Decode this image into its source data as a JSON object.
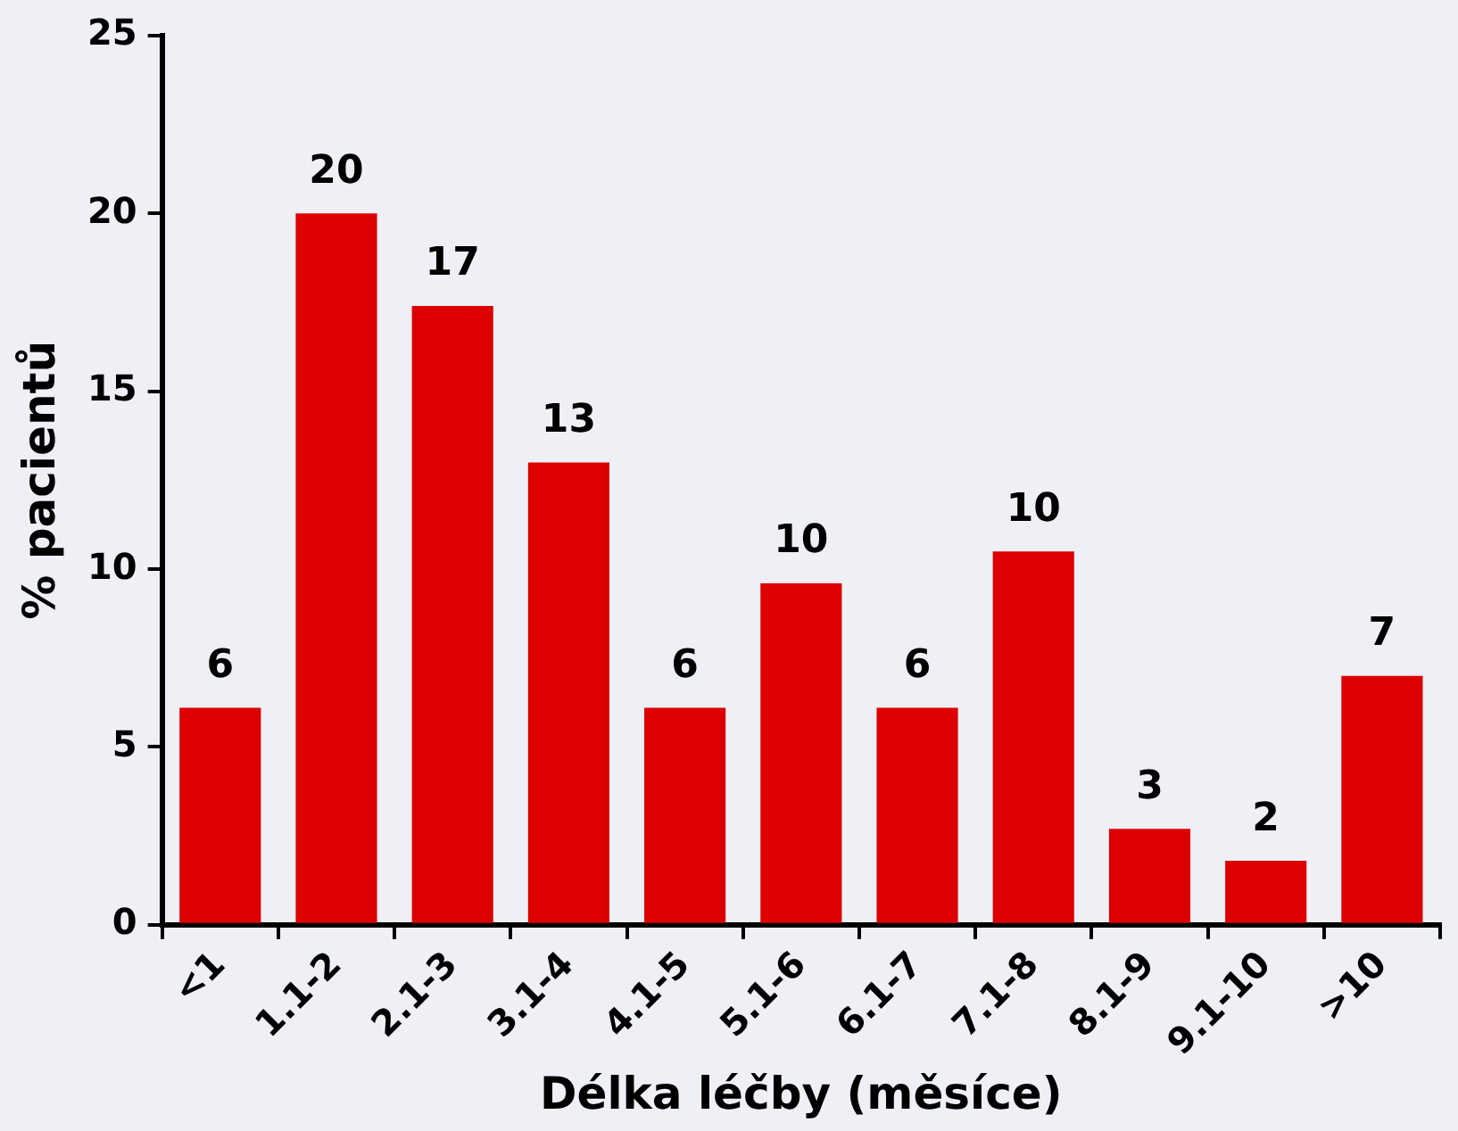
{
  "chart_data": {
    "type": "bar",
    "xlabel": "Délka léčby (měsíce)",
    "ylabel": "% pacientů",
    "categories": [
      "<1",
      "1.1-2",
      "2.1-3",
      "3.1-4",
      "4.1-5",
      "5.1-6",
      "6.1-7",
      "7.1-8",
      "8.1-9",
      "9.1-10",
      ">10"
    ],
    "values": [
      6.1,
      20,
      17.4,
      13,
      6.1,
      9.6,
      6.1,
      10.5,
      2.7,
      1.8,
      7
    ],
    "value_labels": [
      "6",
      "20",
      "17",
      "13",
      "6",
      "10",
      "6",
      "10",
      "3",
      "2",
      "7"
    ],
    "color": "#dd0000",
    "ylim": [
      0,
      25
    ],
    "yticks": [
      0,
      5,
      10,
      15,
      20,
      25
    ],
    "grid": false,
    "legend": false
  }
}
